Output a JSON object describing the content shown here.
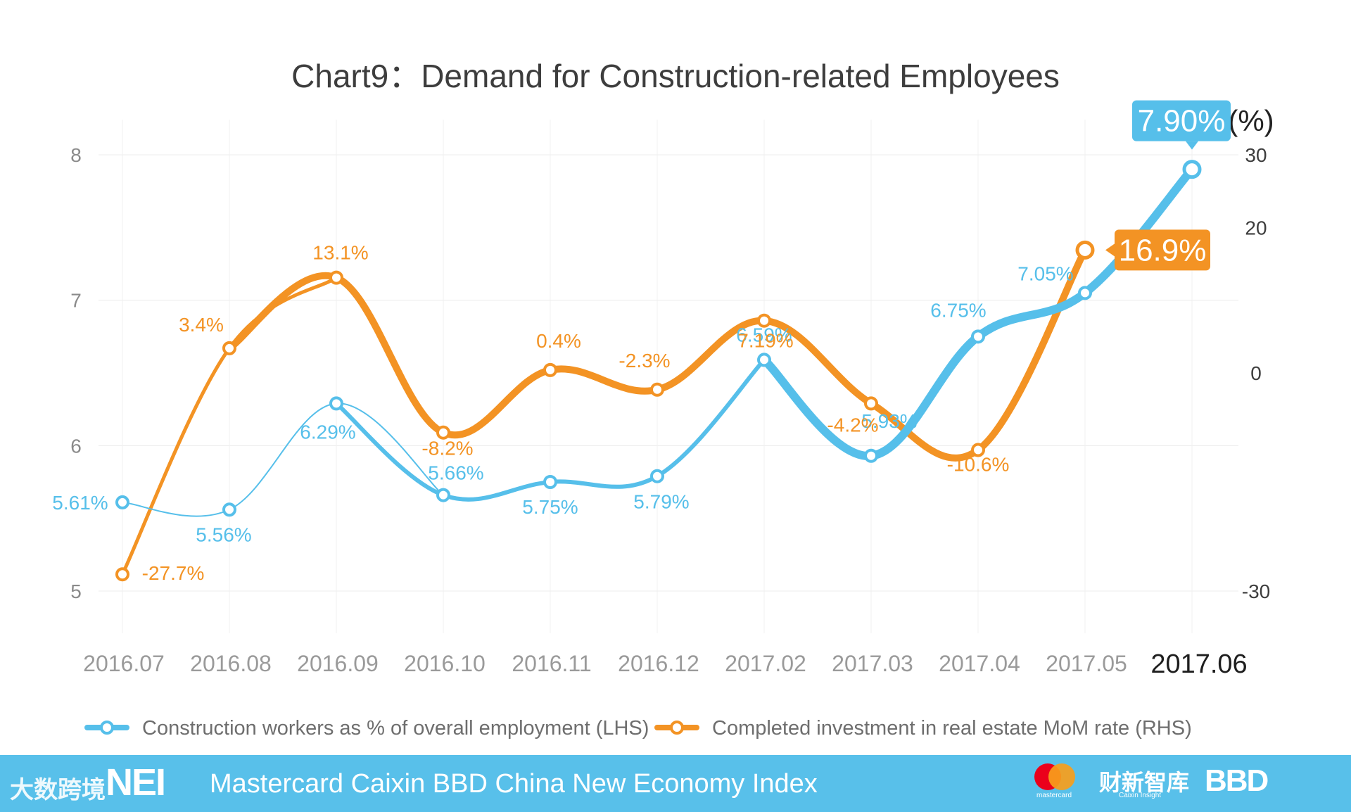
{
  "chart_data": {
    "type": "line",
    "title": "Chart9：Demand for Construction-related Employees",
    "categories": [
      "2016.07",
      "2016.08",
      "2016.09",
      "2016.10",
      "2016.11",
      "2016.12",
      "2017.02",
      "2017.03",
      "2017.04",
      "2017.05",
      "2017.06"
    ],
    "left_axis": {
      "ylim": [
        5,
        8
      ],
      "ticks": [
        "5",
        "6",
        "7",
        "8"
      ]
    },
    "right_axis": {
      "ylim": [
        -30,
        30
      ],
      "ticks": [
        "-30",
        "0",
        "20",
        "30"
      ],
      "unit_label": "(%)"
    },
    "series": [
      {
        "name": "Construction workers as % of overall employment (LHS)",
        "axis": "left",
        "color": "#56bfea",
        "values": [
          5.61,
          5.56,
          6.29,
          5.66,
          5.75,
          5.79,
          6.59,
          5.93,
          6.75,
          7.05,
          7.9
        ],
        "labels": [
          "5.61%",
          "5.56%",
          "6.29%",
          "5.66%",
          "5.75%",
          "5.79%",
          "6.59%",
          "5.93%",
          "6.75%",
          "7.05%",
          "7.90%"
        ]
      },
      {
        "name": "Completed investment in real estate MoM rate (RHS)",
        "axis": "right",
        "color": "#f39324",
        "values": [
          -27.7,
          3.4,
          13.1,
          -8.2,
          0.4,
          -2.3,
          7.19,
          -4.2,
          -10.6,
          16.9,
          null
        ],
        "labels": [
          "-27.7%",
          "3.4%",
          "13.1%",
          "-8.2%",
          "0.4%",
          "-2.3%",
          "7.19%",
          "-4.2%",
          "-10.6%",
          "16.9%",
          ""
        ]
      }
    ]
  },
  "footer": {
    "title": "Mastercard Caixin BBD China New Economy Index",
    "nei_logo": "NEI",
    "watermark": "大数跨境",
    "mastercard_label": "mastercard",
    "caixin_logo": "财新智库",
    "caixin_sub": "Caixin Insight",
    "bbd_logo": "BBD",
    "colors": {
      "band": "#58c0ea"
    }
  }
}
